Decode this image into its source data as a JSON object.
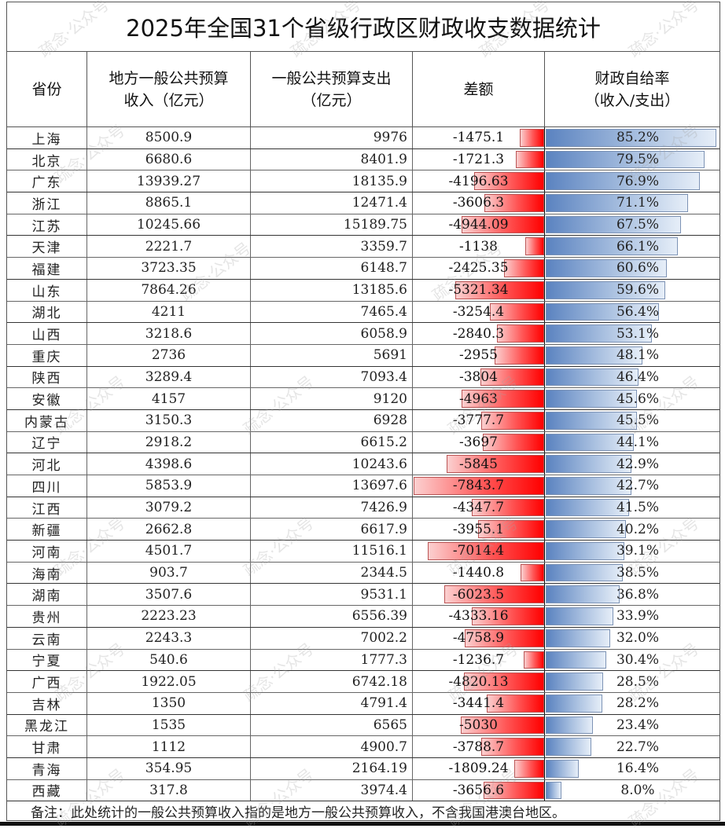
{
  "title": "2025年全国31个省级行政区财政收支数据统计",
  "headers": {
    "province": "省份",
    "revenue": "地方一般公共预算\n收入（亿元）",
    "expenditure": "一般公共预算支出\n（亿元）",
    "difference": "差额",
    "self_sufficiency": "财政自给率\n（收入/支出）"
  },
  "colors": {
    "deficit_bar": "#ff0000",
    "rate_bar": "#5b83c0"
  },
  "rows": [
    {
      "province": "上海",
      "revenue": "8500.9",
      "expenditure": "9976",
      "difference": "-1475.1",
      "rate": "85.2%",
      "diff_val": 1475.1,
      "rate_val": 85.2
    },
    {
      "province": "北京",
      "revenue": "6680.6",
      "expenditure": "8401.9",
      "difference": "-1721.3",
      "rate": "79.5%",
      "diff_val": 1721.3,
      "rate_val": 79.5
    },
    {
      "province": "广东",
      "revenue": "13939.27",
      "expenditure": "18135.9",
      "difference": "-4196.63",
      "rate": "76.9%",
      "diff_val": 4196.63,
      "rate_val": 76.9
    },
    {
      "province": "浙江",
      "revenue": "8865.1",
      "expenditure": "12471.4",
      "difference": "-3606.3",
      "rate": "71.1%",
      "diff_val": 3606.3,
      "rate_val": 71.1
    },
    {
      "province": "江苏",
      "revenue": "10245.66",
      "expenditure": "15189.75",
      "difference": "-4944.09",
      "rate": "67.5%",
      "diff_val": 4944.09,
      "rate_val": 67.5
    },
    {
      "province": "天津",
      "revenue": "2221.7",
      "expenditure": "3359.7",
      "difference": "-1138",
      "rate": "66.1%",
      "diff_val": 1138,
      "rate_val": 66.1
    },
    {
      "province": "福建",
      "revenue": "3723.35",
      "expenditure": "6148.7",
      "difference": "-2425.35",
      "rate": "60.6%",
      "diff_val": 2425.35,
      "rate_val": 60.6
    },
    {
      "province": "山东",
      "revenue": "7864.26",
      "expenditure": "13185.6",
      "difference": "-5321.34",
      "rate": "59.6%",
      "diff_val": 5321.34,
      "rate_val": 59.6
    },
    {
      "province": "湖北",
      "revenue": "4211",
      "expenditure": "7465.4",
      "difference": "-3254.4",
      "rate": "56.4%",
      "diff_val": 3254.4,
      "rate_val": 56.4
    },
    {
      "province": "山西",
      "revenue": "3218.6",
      "expenditure": "6058.9",
      "difference": "-2840.3",
      "rate": "53.1%",
      "diff_val": 2840.3,
      "rate_val": 53.1
    },
    {
      "province": "重庆",
      "revenue": "2736",
      "expenditure": "5691",
      "difference": "-2955",
      "rate": "48.1%",
      "diff_val": 2955,
      "rate_val": 48.1
    },
    {
      "province": "陕西",
      "revenue": "3289.4",
      "expenditure": "7093.4",
      "difference": "-3804",
      "rate": "46.4%",
      "diff_val": 3804,
      "rate_val": 46.4
    },
    {
      "province": "安徽",
      "revenue": "4157",
      "expenditure": "9120",
      "difference": "-4963",
      "rate": "45.6%",
      "diff_val": 4963,
      "rate_val": 45.6
    },
    {
      "province": "内蒙古",
      "revenue": "3150.3",
      "expenditure": "6928",
      "difference": "-3777.7",
      "rate": "45.5%",
      "diff_val": 3777.7,
      "rate_val": 45.5
    },
    {
      "province": "辽宁",
      "revenue": "2918.2",
      "expenditure": "6615.2",
      "difference": "-3697",
      "rate": "44.1%",
      "diff_val": 3697,
      "rate_val": 44.1
    },
    {
      "province": "河北",
      "revenue": "4398.6",
      "expenditure": "10243.6",
      "difference": "-5845",
      "rate": "42.9%",
      "diff_val": 5845,
      "rate_val": 42.9
    },
    {
      "province": "四川",
      "revenue": "5853.9",
      "expenditure": "13697.6",
      "difference": "-7843.7",
      "rate": "42.7%",
      "diff_val": 7843.7,
      "rate_val": 42.7
    },
    {
      "province": "江西",
      "revenue": "3079.2",
      "expenditure": "7426.9",
      "difference": "-4347.7",
      "rate": "41.5%",
      "diff_val": 4347.7,
      "rate_val": 41.5
    },
    {
      "province": "新疆",
      "revenue": "2662.8",
      "expenditure": "6617.9",
      "difference": "-3955.1",
      "rate": "40.2%",
      "diff_val": 3955.1,
      "rate_val": 40.2
    },
    {
      "province": "河南",
      "revenue": "4501.7",
      "expenditure": "11516.1",
      "difference": "-7014.4",
      "rate": "39.1%",
      "diff_val": 7014.4,
      "rate_val": 39.1
    },
    {
      "province": "海南",
      "revenue": "903.7",
      "expenditure": "2344.5",
      "difference": "-1440.8",
      "rate": "38.5%",
      "diff_val": 1440.8,
      "rate_val": 38.5
    },
    {
      "province": "湖南",
      "revenue": "3507.6",
      "expenditure": "9531.1",
      "difference": "-6023.5",
      "rate": "36.8%",
      "diff_val": 6023.5,
      "rate_val": 36.8
    },
    {
      "province": "贵州",
      "revenue": "2223.23",
      "expenditure": "6556.39",
      "difference": "-4333.16",
      "rate": "33.9%",
      "diff_val": 4333.16,
      "rate_val": 33.9
    },
    {
      "province": "云南",
      "revenue": "2243.3",
      "expenditure": "7002.2",
      "difference": "-4758.9",
      "rate": "32.0%",
      "diff_val": 4758.9,
      "rate_val": 32.0
    },
    {
      "province": "宁夏",
      "revenue": "540.6",
      "expenditure": "1777.3",
      "difference": "-1236.7",
      "rate": "30.4%",
      "diff_val": 1236.7,
      "rate_val": 30.4
    },
    {
      "province": "广西",
      "revenue": "1922.05",
      "expenditure": "6742.18",
      "difference": "-4820.13",
      "rate": "28.5%",
      "diff_val": 4820.13,
      "rate_val": 28.5
    },
    {
      "province": "吉林",
      "revenue": "1350",
      "expenditure": "4791.4",
      "difference": "-3441.4",
      "rate": "28.2%",
      "diff_val": 3441.4,
      "rate_val": 28.2
    },
    {
      "province": "黑龙江",
      "revenue": "1535",
      "expenditure": "6565",
      "difference": "-5030",
      "rate": "23.4%",
      "diff_val": 5030,
      "rate_val": 23.4
    },
    {
      "province": "甘肃",
      "revenue": "1112",
      "expenditure": "4900.7",
      "difference": "-3788.7",
      "rate": "22.7%",
      "diff_val": 3788.7,
      "rate_val": 22.7
    },
    {
      "province": "青海",
      "revenue": "354.95",
      "expenditure": "2164.19",
      "difference": "-1809.24",
      "rate": "16.4%",
      "diff_val": 1809.24,
      "rate_val": 16.4
    },
    {
      "province": "西藏",
      "revenue": "317.8",
      "expenditure": "3974.4",
      "difference": "-3656.6",
      "rate": "8.0%",
      "diff_val": 3656.6,
      "rate_val": 8.0
    }
  ],
  "footer": "备注：此处统计的一般公共预算收入指的是地方一般公共预算收入，不含我国港澳台地区。",
  "watermark": "疏念·公众号"
}
